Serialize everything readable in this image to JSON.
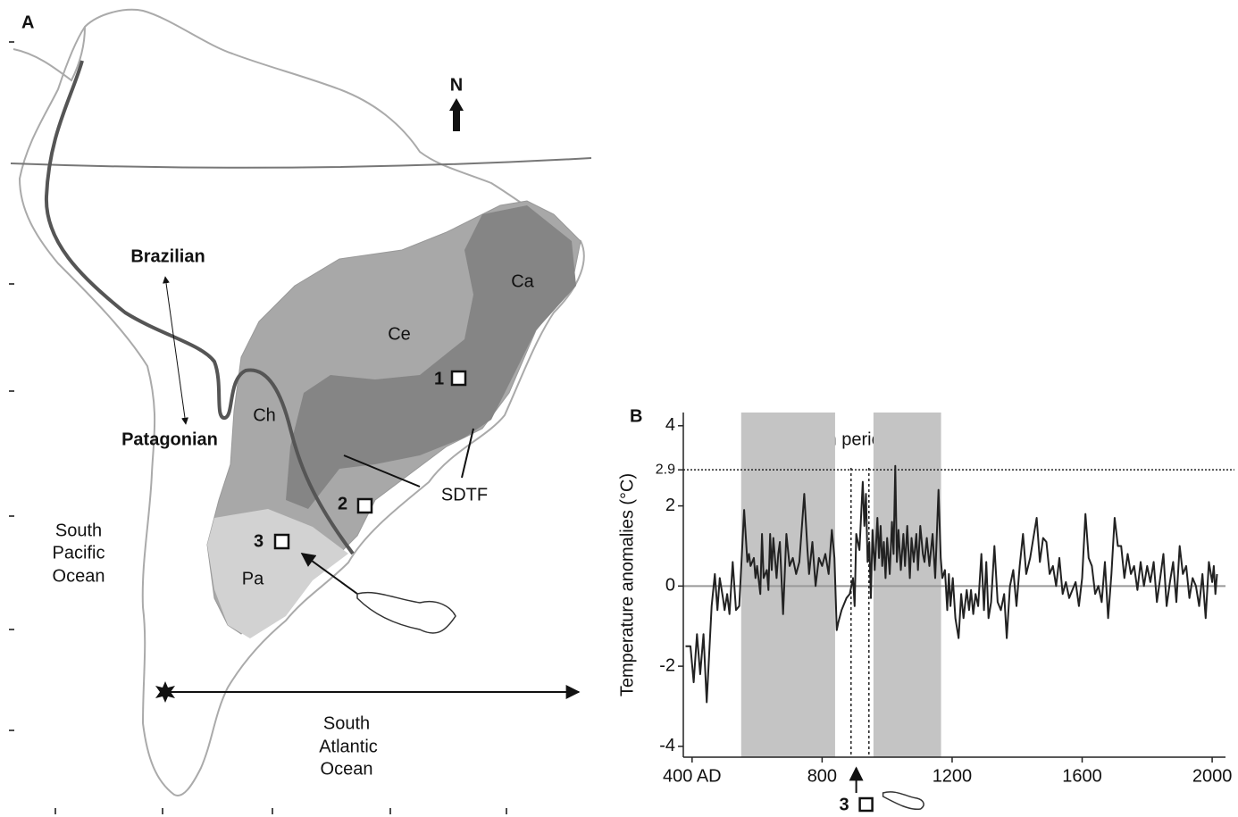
{
  "panel_a": {
    "label": "A",
    "north": "N",
    "brazilian": "Brazilian",
    "patagonian": "Patagonian",
    "regions": [
      "Ce",
      "Ca",
      "Ch",
      "Pa"
    ],
    "sdtf": "SDTF",
    "sites": [
      "1",
      "2",
      "3"
    ],
    "pacific": [
      "South",
      "Pacific",
      "Ocean"
    ],
    "atlantic": [
      "South",
      "Atlantic",
      "Ocean"
    ]
  },
  "chart_data": {
    "type": "line",
    "panel_label": "B",
    "y_label": "Temperature anomalies (°C)",
    "annotation": "Warm periods",
    "color": "#222222",
    "xlim": [
      373,
      2041
    ],
    "ylim": [
      -4.27,
      4.33
    ],
    "xticks": [
      {
        "value": 400,
        "label": "400 AD"
      },
      800,
      1200,
      1600,
      2000
    ],
    "yticks": [
      -4,
      -2,
      0,
      2,
      2.9,
      4
    ],
    "hlines": [
      2.9
    ],
    "shaded_ranges": [
      [
        551,
        840
      ],
      [
        958,
        1166
      ]
    ],
    "vlines": [
      889,
      944
    ],
    "specimen_marker": {
      "label": "3",
      "x": 905
    },
    "x": [
      380,
      395,
      405,
      415,
      425,
      435,
      445,
      460,
      470,
      478,
      485,
      495,
      500,
      508,
      515,
      525,
      535,
      545,
      560,
      570,
      575,
      580,
      590,
      595,
      600,
      610,
      615,
      620,
      630,
      635,
      640,
      645,
      650,
      660,
      665,
      670,
      680,
      690,
      700,
      710,
      720,
      730,
      745,
      755,
      760,
      770,
      780,
      790,
      800,
      810,
      820,
      830,
      838,
      845,
      850,
      860,
      875,
      885,
      895,
      900,
      905,
      915,
      925,
      930,
      935,
      940,
      945,
      950,
      955,
      962,
      970,
      975,
      980,
      985,
      990,
      995,
      1000,
      1008,
      1015,
      1020,
      1025,
      1030,
      1035,
      1042,
      1050,
      1055,
      1062,
      1070,
      1075,
      1082,
      1090,
      1095,
      1102,
      1110,
      1115,
      1122,
      1130,
      1140,
      1148,
      1158,
      1165,
      1170,
      1178,
      1185,
      1190,
      1195,
      1202,
      1210,
      1220,
      1228,
      1235,
      1245,
      1252,
      1258,
      1265,
      1272,
      1280,
      1290,
      1298,
      1305,
      1312,
      1320,
      1330,
      1340,
      1350,
      1360,
      1368,
      1378,
      1388,
      1398,
      1408,
      1418,
      1428,
      1440,
      1450,
      1460,
      1470,
      1480,
      1490,
      1500,
      1510,
      1520,
      1530,
      1540,
      1550,
      1560,
      1570,
      1580,
      1590,
      1600,
      1610,
      1620,
      1630,
      1640,
      1650,
      1660,
      1670,
      1680,
      1690,
      1700,
      1710,
      1720,
      1730,
      1740,
      1750,
      1760,
      1770,
      1780,
      1790,
      1800,
      1810,
      1820,
      1830,
      1840,
      1850,
      1860,
      1870,
      1880,
      1890,
      1900,
      1910,
      1920,
      1930,
      1940,
      1950,
      1960,
      1970,
      1980,
      1990,
      2000,
      2005,
      2010,
      2015
    ],
    "values": [
      -1.5,
      -1.5,
      -2.4,
      -1.2,
      -2.2,
      -1.2,
      -2.9,
      -0.5,
      0.3,
      -0.6,
      0.2,
      -0.3,
      -0.6,
      -0.2,
      -0.7,
      0.6,
      -0.6,
      -0.5,
      1.9,
      0.6,
      0.8,
      0.5,
      0.7,
      0.2,
      0.5,
      -0.2,
      1.3,
      0.2,
      0.4,
      -0.1,
      1.3,
      0.4,
      1.2,
      0.2,
      0.8,
      1.1,
      -0.7,
      1.3,
      0.5,
      0.7,
      0.3,
      0.6,
      2.3,
      0.9,
      0.3,
      1.1,
      0.0,
      0.7,
      0.5,
      0.8,
      0.3,
      1.4,
      0.7,
      -1.1,
      -0.9,
      -0.6,
      -0.3,
      -0.2,
      0.2,
      -0.5,
      1.3,
      0.9,
      2.6,
      1.5,
      2.3,
      0.6,
      1.1,
      -0.3,
      1.4,
      0.4,
      1.7,
      0.7,
      1.5,
      0.5,
      1.1,
      0.2,
      1.2,
      0.3,
      1.6,
      0.8,
      3.0,
      0.6,
      1.4,
      0.4,
      1.3,
      0.5,
      1.5,
      0.2,
      1.2,
      0.6,
      1.3,
      0.4,
      1.5,
      0.8,
      0.6,
      1.2,
      0.5,
      1.3,
      0.2,
      2.4,
      0.7,
      0.2,
      0.4,
      -0.6,
      0.3,
      -0.5,
      0.2,
      -0.8,
      -1.3,
      -0.2,
      -0.8,
      -0.1,
      -0.6,
      -0.1,
      -0.7,
      -0.2,
      -0.5,
      0.8,
      -0.6,
      0.6,
      -0.8,
      -0.4,
      1.0,
      -0.4,
      -0.6,
      -0.2,
      -1.3,
      0.0,
      0.4,
      -0.5,
      0.5,
      1.3,
      0.3,
      0.7,
      1.2,
      1.7,
      0.6,
      1.2,
      1.1,
      0.3,
      0.5,
      0.0,
      0.7,
      -0.2,
      0.1,
      -0.3,
      -0.1,
      0.1,
      -0.5,
      0.2,
      1.8,
      0.7,
      0.5,
      -0.2,
      0.0,
      -0.4,
      0.6,
      -0.8,
      0.3,
      1.7,
      1.0,
      1.0,
      0.2,
      0.8,
      0.3,
      0.5,
      -0.1,
      0.6,
      0.0,
      0.5,
      0.1,
      0.6,
      -0.4,
      0.2,
      0.8,
      -0.5,
      0.1,
      0.6,
      -0.4,
      1.0,
      0.3,
      0.5,
      -0.3,
      0.2,
      0.0,
      -0.5,
      0.3,
      -0.8,
      0.6,
      0.1,
      0.5,
      -0.2,
      0.3
    ]
  }
}
